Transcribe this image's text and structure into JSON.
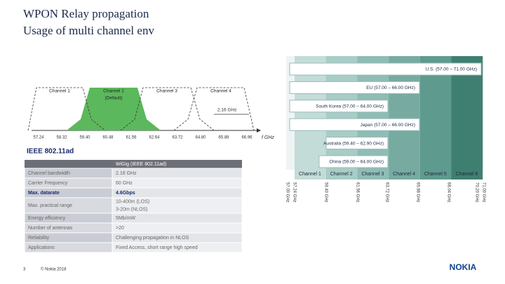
{
  "header": {
    "title": "WPON Relay propagation",
    "subtitle": "Usage of multi channel env"
  },
  "channel_diagram": {
    "channels": [
      "Channel 1",
      "Channel 2",
      "Channel 3",
      "Channel 4"
    ],
    "default_label": "(Default)",
    "bandwidth_label": "2.16 GHz",
    "frequencies": [
      "57.24",
      "58.32",
      "59.40",
      "60.48",
      "61.56",
      "62.64",
      "63.72",
      "64.80",
      "65.88",
      "66.96"
    ],
    "axis_label": "f GHz"
  },
  "table": {
    "title": "IEEE 802.11ad",
    "column_header": "WiGig (IEEE 802.11ad)",
    "rows": [
      [
        "Channel bandwidth",
        "2.16 GHz"
      ],
      [
        "Carrier Frequency",
        "60 GHz"
      ],
      [
        "Max. datarate",
        "4.6Gbps"
      ],
      [
        "Max. practical range",
        "10-400m (LOS)",
        "3-20m (NLOS)"
      ],
      [
        "Energy efficiency",
        "5Mb/mW"
      ],
      [
        "Number of antennas",
        ">20"
      ],
      [
        "Reliability",
        "Challenging propagation in NLOS"
      ],
      [
        "Applications",
        "Fixed Access, short range high speed"
      ]
    ]
  },
  "region_diagram": {
    "regions": [
      "U.S. (57.00 – 71.00 GHz)",
      "EU (57.00 – 66.00 GHz)",
      "South Korea (57.00 – 64.00 GHz)",
      "Japan (57.00 – 66.00 GHz)",
      "Australia (59.40 – 62.90 GHz)",
      "China (59.00 – 64.00 GHz)"
    ],
    "channels": [
      "Channel 1",
      "Channel 2",
      "Channel 3",
      "Channel 4",
      "Channel 5",
      "Channel 6"
    ],
    "frequencies": [
      "57.00 GHz",
      "57.24 GHz",
      "59.40 GHz",
      "61.56 GHz",
      "63.72 GHz",
      "65.88 GHz",
      "68.04 GHz",
      "70.20 GHz",
      "71.00 GHz"
    ]
  },
  "footer": {
    "page": "3",
    "copyright": "© Nokia 2018",
    "logo": "NOKIA"
  }
}
